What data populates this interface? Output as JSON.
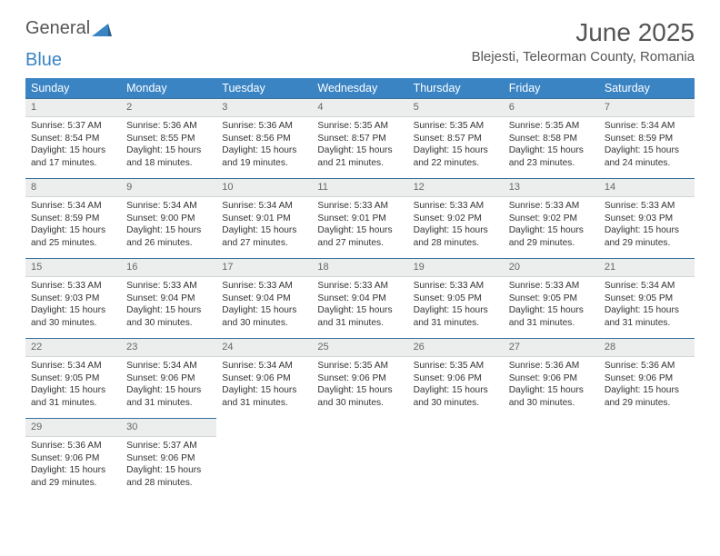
{
  "brand": {
    "part1": "General",
    "part2": "Blue"
  },
  "title": "June 2025",
  "location": "Blejesti, Teleorman County, Romania",
  "colors": {
    "header_bg": "#3a84c4",
    "header_text": "#ffffff",
    "daynum_bg": "#eceded",
    "border_top": "#3a6f9a",
    "text": "#333333"
  },
  "weekdays": [
    "Sunday",
    "Monday",
    "Tuesday",
    "Wednesday",
    "Thursday",
    "Friday",
    "Saturday"
  ],
  "weeks": [
    [
      {
        "n": "1",
        "sr": "5:37 AM",
        "ss": "8:54 PM",
        "dl": "15 hours and 17 minutes."
      },
      {
        "n": "2",
        "sr": "5:36 AM",
        "ss": "8:55 PM",
        "dl": "15 hours and 18 minutes."
      },
      {
        "n": "3",
        "sr": "5:36 AM",
        "ss": "8:56 PM",
        "dl": "15 hours and 19 minutes."
      },
      {
        "n": "4",
        "sr": "5:35 AM",
        "ss": "8:57 PM",
        "dl": "15 hours and 21 minutes."
      },
      {
        "n": "5",
        "sr": "5:35 AM",
        "ss": "8:57 PM",
        "dl": "15 hours and 22 minutes."
      },
      {
        "n": "6",
        "sr": "5:35 AM",
        "ss": "8:58 PM",
        "dl": "15 hours and 23 minutes."
      },
      {
        "n": "7",
        "sr": "5:34 AM",
        "ss": "8:59 PM",
        "dl": "15 hours and 24 minutes."
      }
    ],
    [
      {
        "n": "8",
        "sr": "5:34 AM",
        "ss": "8:59 PM",
        "dl": "15 hours and 25 minutes."
      },
      {
        "n": "9",
        "sr": "5:34 AM",
        "ss": "9:00 PM",
        "dl": "15 hours and 26 minutes."
      },
      {
        "n": "10",
        "sr": "5:34 AM",
        "ss": "9:01 PM",
        "dl": "15 hours and 27 minutes."
      },
      {
        "n": "11",
        "sr": "5:33 AM",
        "ss": "9:01 PM",
        "dl": "15 hours and 27 minutes."
      },
      {
        "n": "12",
        "sr": "5:33 AM",
        "ss": "9:02 PM",
        "dl": "15 hours and 28 minutes."
      },
      {
        "n": "13",
        "sr": "5:33 AM",
        "ss": "9:02 PM",
        "dl": "15 hours and 29 minutes."
      },
      {
        "n": "14",
        "sr": "5:33 AM",
        "ss": "9:03 PM",
        "dl": "15 hours and 29 minutes."
      }
    ],
    [
      {
        "n": "15",
        "sr": "5:33 AM",
        "ss": "9:03 PM",
        "dl": "15 hours and 30 minutes."
      },
      {
        "n": "16",
        "sr": "5:33 AM",
        "ss": "9:04 PM",
        "dl": "15 hours and 30 minutes."
      },
      {
        "n": "17",
        "sr": "5:33 AM",
        "ss": "9:04 PM",
        "dl": "15 hours and 30 minutes."
      },
      {
        "n": "18",
        "sr": "5:33 AM",
        "ss": "9:04 PM",
        "dl": "15 hours and 31 minutes."
      },
      {
        "n": "19",
        "sr": "5:33 AM",
        "ss": "9:05 PM",
        "dl": "15 hours and 31 minutes."
      },
      {
        "n": "20",
        "sr": "5:33 AM",
        "ss": "9:05 PM",
        "dl": "15 hours and 31 minutes."
      },
      {
        "n": "21",
        "sr": "5:34 AM",
        "ss": "9:05 PM",
        "dl": "15 hours and 31 minutes."
      }
    ],
    [
      {
        "n": "22",
        "sr": "5:34 AM",
        "ss": "9:05 PM",
        "dl": "15 hours and 31 minutes."
      },
      {
        "n": "23",
        "sr": "5:34 AM",
        "ss": "9:06 PM",
        "dl": "15 hours and 31 minutes."
      },
      {
        "n": "24",
        "sr": "5:34 AM",
        "ss": "9:06 PM",
        "dl": "15 hours and 31 minutes."
      },
      {
        "n": "25",
        "sr": "5:35 AM",
        "ss": "9:06 PM",
        "dl": "15 hours and 30 minutes."
      },
      {
        "n": "26",
        "sr": "5:35 AM",
        "ss": "9:06 PM",
        "dl": "15 hours and 30 minutes."
      },
      {
        "n": "27",
        "sr": "5:36 AM",
        "ss": "9:06 PM",
        "dl": "15 hours and 30 minutes."
      },
      {
        "n": "28",
        "sr": "5:36 AM",
        "ss": "9:06 PM",
        "dl": "15 hours and 29 minutes."
      }
    ],
    [
      {
        "n": "29",
        "sr": "5:36 AM",
        "ss": "9:06 PM",
        "dl": "15 hours and 29 minutes."
      },
      {
        "n": "30",
        "sr": "5:37 AM",
        "ss": "9:06 PM",
        "dl": "15 hours and 28 minutes."
      },
      null,
      null,
      null,
      null,
      null
    ]
  ],
  "labels": {
    "sunrise": "Sunrise: ",
    "sunset": "Sunset: ",
    "daylight": "Daylight: "
  }
}
